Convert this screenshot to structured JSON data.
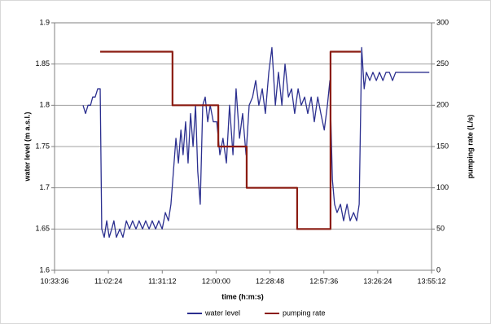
{
  "chart_data": {
    "type": "line",
    "xlabel": "time (h:m:s)",
    "ylabel": "water level (m a.s.l.)",
    "y2label": "pumping rate (L/s)",
    "xlim": [
      38016,
      50112
    ],
    "xticks": [
      {
        "value": 38016,
        "label": "10:33:36"
      },
      {
        "value": 39744,
        "label": "11:02:24"
      },
      {
        "value": 41472,
        "label": "11:31:12"
      },
      {
        "value": 43200,
        "label": "12:00:00"
      },
      {
        "value": 44928,
        "label": "12:28:48"
      },
      {
        "value": 46656,
        "label": "12:57:36"
      },
      {
        "value": 48384,
        "label": "13:26:24"
      },
      {
        "value": 50112,
        "label": "13:55:12"
      }
    ],
    "ylim": [
      1.6,
      1.9
    ],
    "yticks": [
      1.6,
      1.65,
      1.7,
      1.75,
      1.8,
      1.85,
      1.9
    ],
    "y2lim": [
      0,
      300
    ],
    "y2ticks": [
      0,
      50,
      100,
      150,
      200,
      250,
      300
    ],
    "grid": true,
    "legend": "bottom",
    "series": [
      {
        "name": "water level",
        "color": "#2b2f8f",
        "x": [
          38930,
          39010,
          39090,
          39170,
          39240,
          39320,
          39400,
          39480,
          39530,
          39610,
          39690,
          39770,
          39850,
          39920,
          40000,
          40110,
          40210,
          40320,
          40420,
          40520,
          40630,
          40730,
          40840,
          40940,
          41050,
          41150,
          41260,
          41360,
          41470,
          41570,
          41670,
          41750,
          41830,
          41910,
          41990,
          42070,
          42140,
          42220,
          42300,
          42380,
          42460,
          42540,
          42610,
          42690,
          42770,
          42850,
          42930,
          43010,
          43110,
          43220,
          43320,
          43420,
          43530,
          43630,
          43740,
          43840,
          43950,
          44050,
          44160,
          44260,
          44370,
          44470,
          44570,
          44680,
          44780,
          44890,
          44990,
          45100,
          45200,
          45310,
          45410,
          45520,
          45620,
          45720,
          45830,
          45930,
          46040,
          46140,
          46250,
          46350,
          46460,
          46560,
          46670,
          46770,
          46850,
          46930,
          47000,
          47080,
          47190,
          47290,
          47400,
          47500,
          47610,
          47710,
          47790,
          47870,
          47950,
          48020,
          48130,
          48230,
          48340,
          48440,
          48550,
          48650,
          48760,
          48860,
          48960,
          49070,
          50040
        ],
        "values": [
          1.8,
          1.79,
          1.8,
          1.8,
          1.81,
          1.81,
          1.82,
          1.82,
          1.65,
          1.64,
          1.66,
          1.64,
          1.65,
          1.66,
          1.64,
          1.65,
          1.64,
          1.66,
          1.65,
          1.66,
          1.65,
          1.66,
          1.65,
          1.66,
          1.65,
          1.66,
          1.65,
          1.66,
          1.65,
          1.67,
          1.66,
          1.68,
          1.72,
          1.76,
          1.73,
          1.77,
          1.74,
          1.78,
          1.73,
          1.79,
          1.75,
          1.8,
          1.72,
          1.68,
          1.8,
          1.81,
          1.78,
          1.8,
          1.78,
          1.78,
          1.74,
          1.76,
          1.73,
          1.8,
          1.74,
          1.82,
          1.76,
          1.79,
          1.74,
          1.8,
          1.81,
          1.83,
          1.8,
          1.82,
          1.79,
          1.84,
          1.87,
          1.8,
          1.84,
          1.8,
          1.85,
          1.81,
          1.82,
          1.79,
          1.82,
          1.8,
          1.81,
          1.79,
          1.81,
          1.78,
          1.81,
          1.79,
          1.77,
          1.8,
          1.83,
          1.71,
          1.68,
          1.67,
          1.68,
          1.66,
          1.68,
          1.66,
          1.67,
          1.66,
          1.68,
          1.87,
          1.82,
          1.84,
          1.83,
          1.84,
          1.83,
          1.84,
          1.83,
          1.84,
          1.84,
          1.83,
          1.84,
          1.84,
          1.84
        ]
      },
      {
        "name": "pumping rate",
        "color": "#8b1c12",
        "axis": "y2",
        "x": [
          39480,
          41800,
          41800,
          43270,
          43270,
          44180,
          44180,
          45800,
          45800,
          46870,
          46870,
          47840
        ],
        "values": [
          265,
          265,
          200,
          200,
          150,
          150,
          100,
          100,
          50,
          50,
          265,
          265
        ]
      }
    ]
  }
}
